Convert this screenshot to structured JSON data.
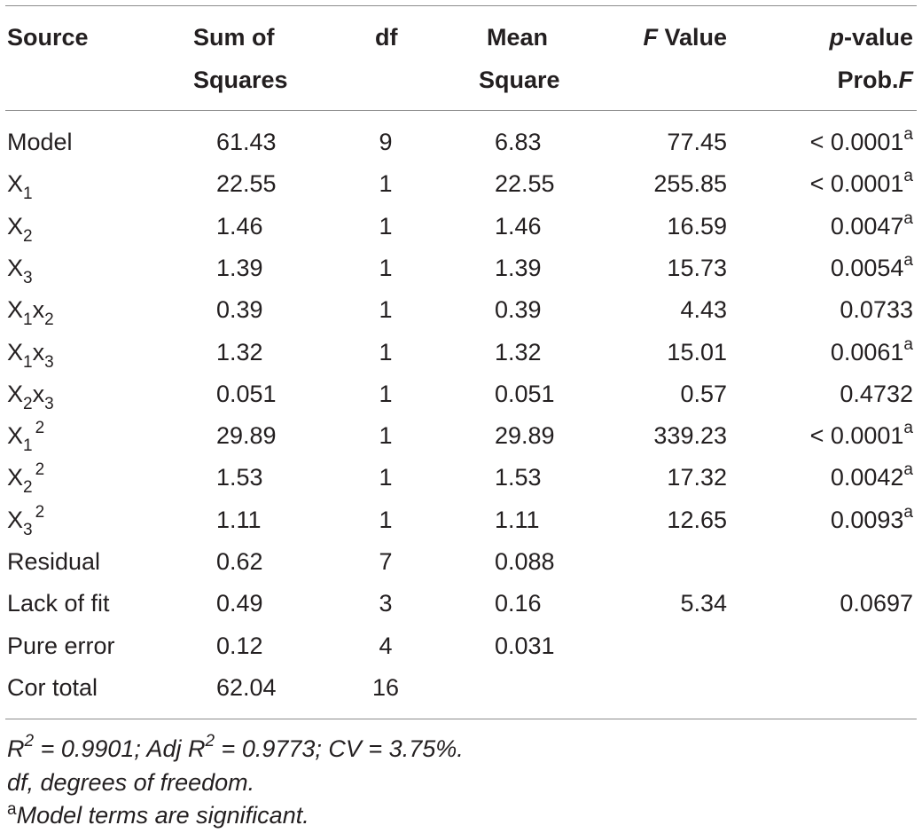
{
  "headers": {
    "source": "Source",
    "ss_line1": "Sum of",
    "ss_line2": "Squares",
    "df": "df",
    "ms_line1": "Mean",
    "ms_line2": "Square",
    "f_italic": "F",
    "f_rest": " Value",
    "p_italic": "p",
    "p_rest": "-value",
    "prob_rest": "Prob.",
    "prob_italic": "F"
  },
  "rows": [
    {
      "src": "Model",
      "ss": "61.43",
      "df": "9",
      "ms": "6.83",
      "f": "77.45",
      "p": "< 0.0001",
      "sig": "a"
    },
    {
      "src": "X",
      "src_sub1": "1",
      "ss": "22.55",
      "df": "1",
      "ms": "22.55",
      "f": "255.85",
      "p": "< 0.0001",
      "sig": "a"
    },
    {
      "src": "X",
      "src_sub1": "2",
      "ss": "1.46",
      "df": "1",
      "ms": "1.46",
      "f": "16.59",
      "p": "0.0047",
      "sig": "a"
    },
    {
      "src": "X",
      "src_sub1": "3",
      "ss": "1.39",
      "df": "1",
      "ms": "1.39",
      "f": "15.73",
      "p": "0.0054",
      "sig": "a"
    },
    {
      "src": "X",
      "src_sub1": "1",
      "src_mid": "x",
      "src_sub2": "2",
      "ss": "0.39",
      "df": "1",
      "ms": "0.39",
      "f": "4.43",
      "p": "0.0733",
      "sig": ""
    },
    {
      "src": "X",
      "src_sub1": "1",
      "src_mid": "x",
      "src_sub2": "3",
      "ss": "1.32",
      "df": "1",
      "ms": "1.32",
      "f": "15.01",
      "p": "0.0061",
      "sig": "a"
    },
    {
      "src": "X",
      "src_sub1": "2",
      "src_mid": "x",
      "src_sub2": "3",
      "ss": "0.051",
      "df": "1",
      "ms": "0.051",
      "f": "0.57",
      "p": "0.4732",
      "sig": ""
    },
    {
      "src": "X",
      "src_sub1": "1",
      "src_sup": "2",
      "ss": "29.89",
      "df": "1",
      "ms": "29.89",
      "f": "339.23",
      "p": "< 0.0001",
      "sig": "a"
    },
    {
      "src": "X",
      "src_sub1": "2",
      "src_sup": "2",
      "ss": "1.53",
      "df": "1",
      "ms": "1.53",
      "f": "17.32",
      "p": "0.0042",
      "sig": "a"
    },
    {
      "src": "X",
      "src_sub1": "3",
      "src_sup": "2",
      "ss": "1.11",
      "df": "1",
      "ms": "1.11",
      "f": "12.65",
      "p": "0.0093",
      "sig": "a"
    },
    {
      "src": "Residual",
      "ss": "0.62",
      "df": "7",
      "ms": "0.088",
      "f": "",
      "p": "",
      "sig": ""
    },
    {
      "src": "Lack of fit",
      "ss": "0.49",
      "df": "3",
      "ms": "0.16",
      "f": "5.34",
      "p": "0.0697",
      "sig": ""
    },
    {
      "src": "Pure error",
      "ss": "0.12",
      "df": "4",
      "ms": "0.031",
      "f": "",
      "p": "",
      "sig": ""
    },
    {
      "src": "Cor total",
      "ss": "62.04",
      "df": "16",
      "ms": "",
      "f": "",
      "p": "",
      "sig": ""
    }
  ],
  "notes": {
    "r2_label": "R",
    "r2_sup": "2",
    "r2_text": " = 0.9901; Adj R",
    "adj_sup": "2",
    "r2_rest": " = 0.9773; CV = 3.75%.",
    "df_note": "df, degrees of freedom.",
    "sig_mark": "a",
    "sig_note": "Model terms are significant."
  }
}
